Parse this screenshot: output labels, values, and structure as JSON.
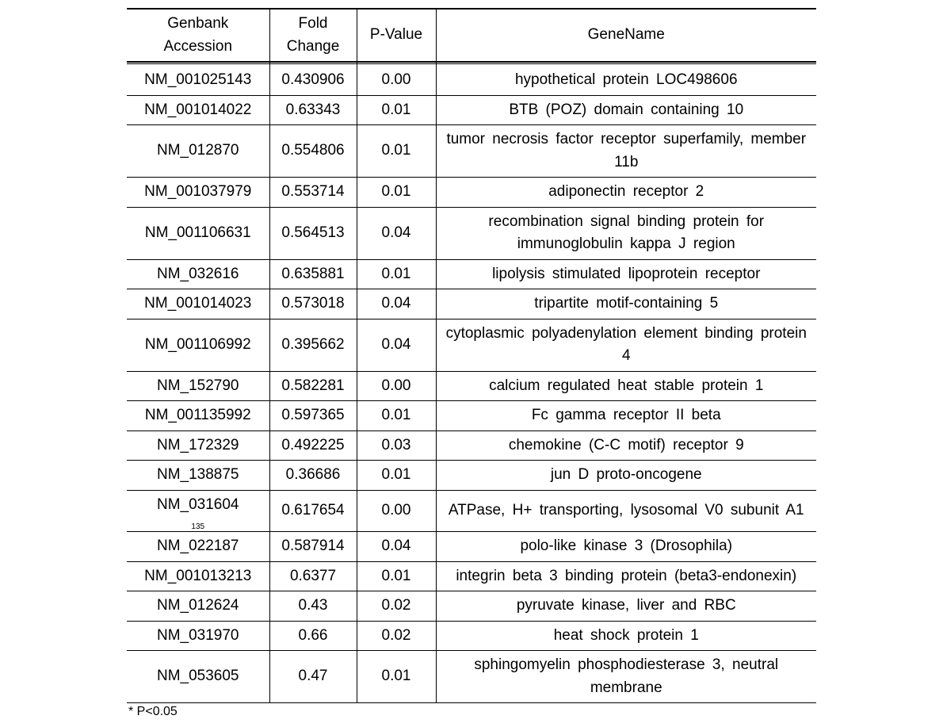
{
  "table": {
    "headers": {
      "accession": "Genbank Accession",
      "fold": "Fold Change",
      "pvalue": "P-Value",
      "genename": "GeneName"
    },
    "rows": [
      {
        "accession": "NM_001025143",
        "fold": "0.430906",
        "pvalue": "0.00",
        "genename": "hypothetical protein LOC498606"
      },
      {
        "accession": "NM_001014022",
        "fold": "0.63343",
        "pvalue": "0.01",
        "genename": "BTB (POZ) domain containing 10"
      },
      {
        "accession": "NM_012870",
        "fold": "0.554806",
        "pvalue": "0.01",
        "genename": "tumor necrosis factor receptor superfamily, member 11b"
      },
      {
        "accession": "NM_001037979",
        "fold": "0.553714",
        "pvalue": "0.01",
        "genename": "adiponectin receptor 2"
      },
      {
        "accession": "NM_001106631",
        "fold": "0.564513",
        "pvalue": "0.04",
        "genename": "recombination signal binding protein for immunoglobulin kappa J region"
      },
      {
        "accession": "NM_032616",
        "fold": "0.635881",
        "pvalue": "0.01",
        "genename": "lipolysis stimulated lipoprotein receptor"
      },
      {
        "accession": "NM_001014023",
        "fold": "0.573018",
        "pvalue": "0.04",
        "genename": "tripartite motif-containing 5"
      },
      {
        "accession": "NM_001106992",
        "fold": "0.395662",
        "pvalue": "0.04",
        "genename": "cytoplasmic polyadenylation element binding protein 4"
      },
      {
        "accession": "NM_152790",
        "fold": "0.582281",
        "pvalue": "0.00",
        "genename": "calcium regulated heat stable protein 1"
      },
      {
        "accession": "NM_001135992",
        "fold": "0.597365",
        "pvalue": "0.01",
        "genename": "Fc gamma receptor II beta"
      },
      {
        "accession": "NM_172329",
        "fold": "0.492225",
        "pvalue": "0.03",
        "genename": "chemokine (C-C motif) receptor 9"
      },
      {
        "accession": "NM_138875",
        "fold": "0.36686",
        "pvalue": "0.01",
        "genename": "jun D proto-oncogene"
      },
      {
        "accession": "NM_031604",
        "fold": "0.617654",
        "pvalue": "0.00",
        "genename": "ATPase, H+ transporting, lysosomal V0 subunit A1",
        "page_num": "135"
      },
      {
        "accession": "NM_022187",
        "fold": "0.587914",
        "pvalue": "0.04",
        "genename": "polo-like kinase 3 (Drosophila)"
      },
      {
        "accession": "NM_001013213",
        "fold": "0.6377",
        "pvalue": "0.01",
        "genename": "integrin beta 3 binding protein (beta3-endonexin)"
      },
      {
        "accession": "NM_012624",
        "fold": "0.43",
        "pvalue": "0.02",
        "genename": "pyruvate kinase, liver and RBC"
      },
      {
        "accession": "NM_031970",
        "fold": "0.66",
        "pvalue": "0.02",
        "genename": "heat shock protein 1"
      },
      {
        "accession": "NM_053605",
        "fold": "0.47",
        "pvalue": "0.01",
        "genename": "sphingomyelin phosphodiesterase 3, neutral membrane"
      }
    ],
    "footnote": "* P<0.05"
  },
  "style": {
    "font_family": "Arial, sans-serif",
    "cell_fontsize": 19,
    "header_fontsize": 19,
    "footnote_fontsize": 16,
    "text_color": "#000000",
    "background_color": "#ffffff",
    "border_color": "#000000",
    "header_border_top_width": 2,
    "header_border_bottom_width": 2,
    "row_border_width": 1,
    "col_widths": {
      "accession": 180,
      "fold": 110,
      "pvalue": 100,
      "genename": 480
    }
  }
}
